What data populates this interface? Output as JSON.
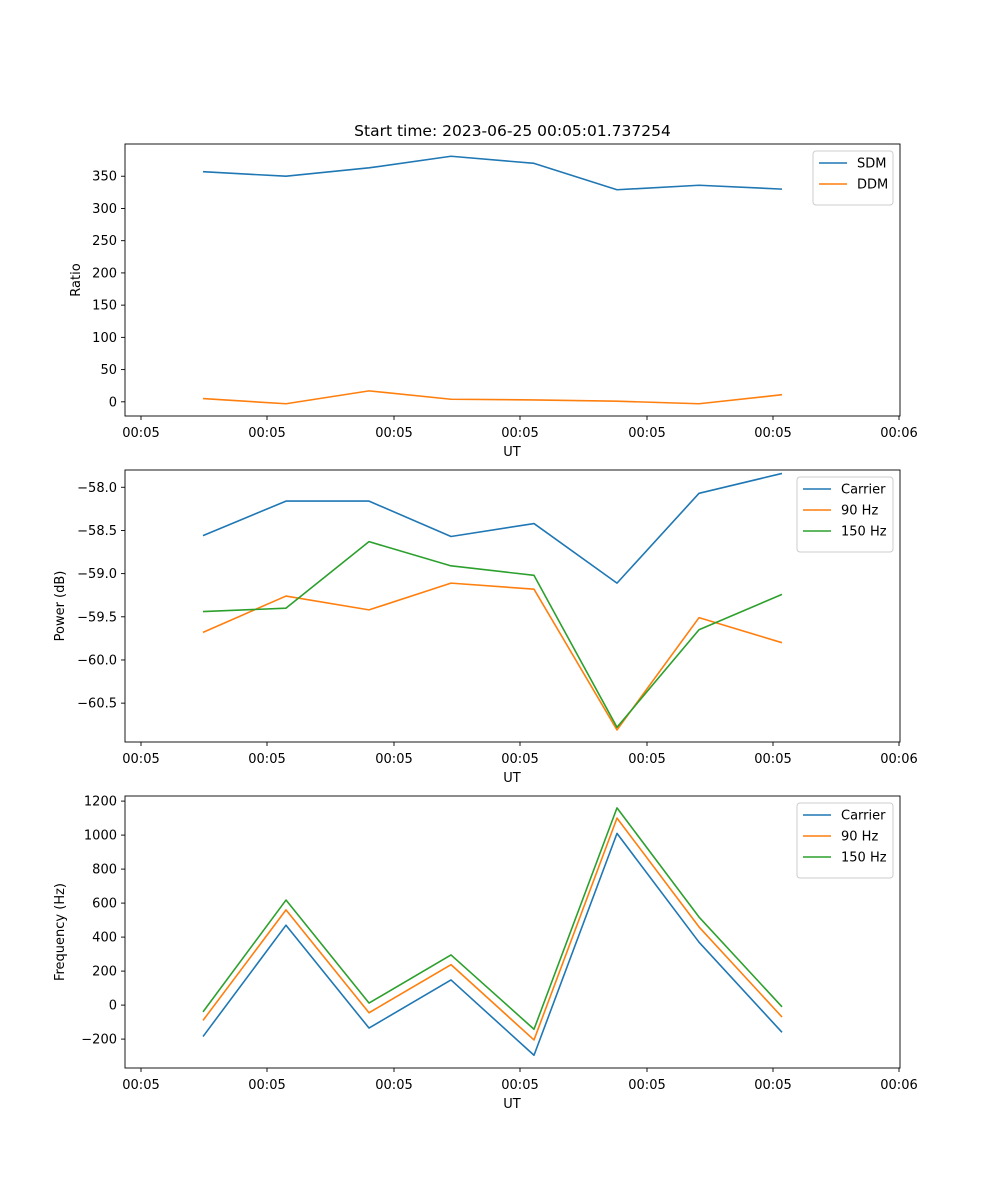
{
  "figure_title": "Start time: 2023-06-25 00:05:01.737254",
  "chart_data": [
    {
      "type": "line",
      "title": "Start time: 2023-06-25 00:05:01.737254",
      "xlabel": "UT",
      "ylabel": "Ratio",
      "x_tick_labels": [
        "00:05",
        "00:05",
        "00:05",
        "00:05",
        "00:05",
        "00:05",
        "00:06"
      ],
      "y_ticks": [
        0,
        50,
        100,
        150,
        200,
        250,
        300,
        350
      ],
      "ylim": [
        -22,
        400
      ],
      "legend_position": "top-right",
      "series": [
        {
          "name": "SDM",
          "color": "#1f77b4",
          "values": [
            357,
            350,
            363,
            381,
            370,
            329,
            336,
            330
          ]
        },
        {
          "name": "DDM",
          "color": "#ff7f0e",
          "values": [
            5,
            -3,
            17,
            4,
            3,
            1,
            -3,
            11
          ]
        }
      ]
    },
    {
      "type": "line",
      "title": "",
      "xlabel": "UT",
      "ylabel": "Power (dB)",
      "x_tick_labels": [
        "00:05",
        "00:05",
        "00:05",
        "00:05",
        "00:05",
        "00:05",
        "00:06"
      ],
      "y_ticks": [
        -60.5,
        -60.0,
        -59.5,
        -59.0,
        -58.5,
        -58.0
      ],
      "y_tick_labels": [
        "−60.5",
        "−60.0",
        "−59.5",
        "−59.0",
        "−58.5",
        "−58.0"
      ],
      "ylim": [
        -60.95,
        -57.8
      ],
      "legend_position": "top-right",
      "series": [
        {
          "name": "Carrier",
          "color": "#1f77b4",
          "values": [
            -58.56,
            -58.16,
            -58.16,
            -58.57,
            -58.42,
            -59.11,
            -58.07,
            -57.84
          ]
        },
        {
          "name": "90 Hz",
          "color": "#ff7f0e",
          "values": [
            -59.68,
            -59.26,
            -59.42,
            -59.11,
            -59.18,
            -60.81,
            -59.51,
            -59.8
          ]
        },
        {
          "name": "150 Hz",
          "color": "#2ca02c",
          "values": [
            -59.44,
            -59.4,
            -58.63,
            -58.91,
            -59.02,
            -60.78,
            -59.65,
            -59.24
          ]
        }
      ]
    },
    {
      "type": "line",
      "title": "",
      "xlabel": "UT",
      "ylabel": "Frequency (Hz)",
      "x_tick_labels": [
        "00:05",
        "00:05",
        "00:05",
        "00:05",
        "00:05",
        "00:05",
        "00:06"
      ],
      "y_ticks": [
        -200,
        0,
        200,
        400,
        600,
        800,
        1000,
        1200
      ],
      "y_tick_labels": [
        "−200",
        "0",
        "200",
        "400",
        "600",
        "800",
        "1000",
        "1200"
      ],
      "ylim": [
        -370,
        1230
      ],
      "legend_position": "top-right",
      "series": [
        {
          "name": "Carrier",
          "color": "#1f77b4",
          "values": [
            -185,
            470,
            -135,
            148,
            -295,
            1010,
            370,
            -160
          ]
        },
        {
          "name": "90 Hz",
          "color": "#ff7f0e",
          "values": [
            -90,
            560,
            -45,
            238,
            -205,
            1100,
            460,
            -70
          ]
        },
        {
          "name": "150 Hz",
          "color": "#2ca02c",
          "values": [
            -40,
            618,
            12,
            295,
            -142,
            1160,
            518,
            -10
          ]
        }
      ]
    }
  ]
}
